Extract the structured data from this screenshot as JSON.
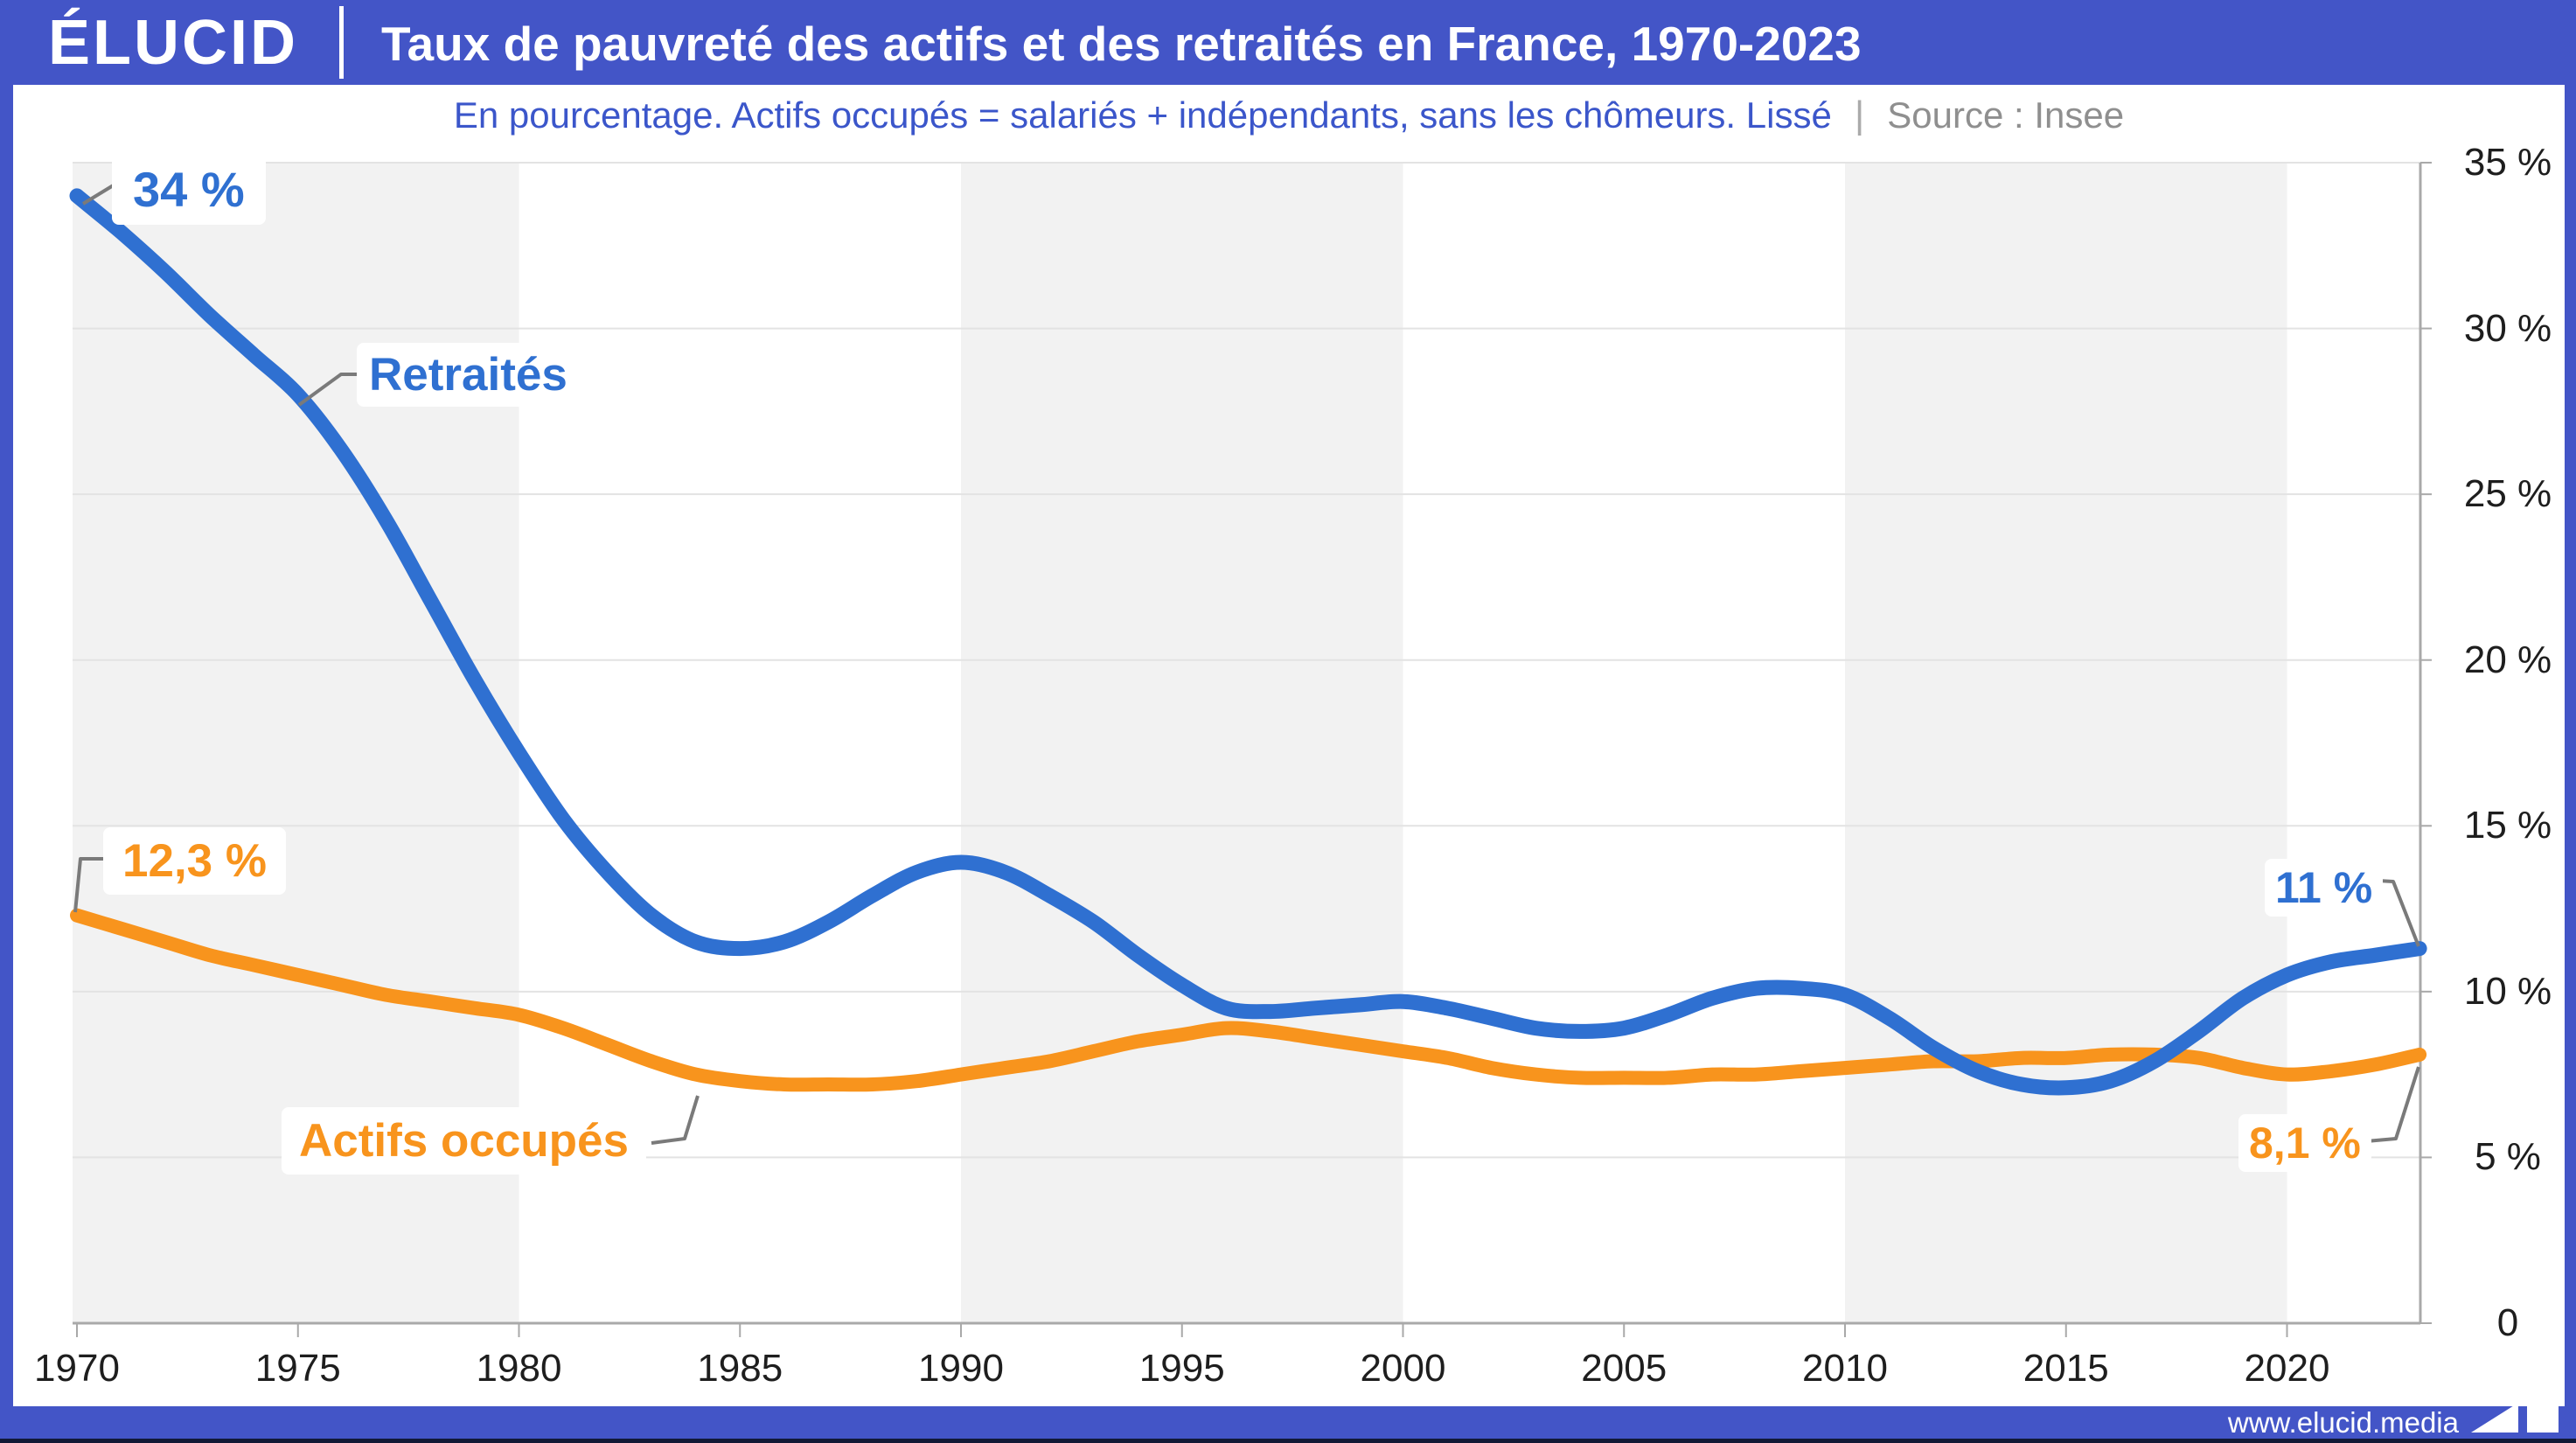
{
  "page": {
    "brand": "ÉLUCID",
    "title": "Taux de pauvreté des actifs et des retraités en France, 1970-2023",
    "subtitle": "En pourcentage. Actifs occupés = salariés + indépendants, sans les chômeurs. Lissé",
    "subtitle_separator": "|",
    "source": "Source : Insee",
    "footer_url": "www.elucid.media",
    "colors": {
      "frame_blue": "#4355c7",
      "retraites_blue": "#2f70d1",
      "actifs_orange": "#f8941d",
      "subtitle_blue": "#3b56ca",
      "source_gray": "#8f8f8f",
      "grid_gray": "#e3e3e3",
      "band_gray": "#f2f2f2",
      "axis_gray": "#a9a9a9"
    }
  },
  "chart_data": {
    "type": "line",
    "title": "Taux de pauvreté des actifs et des retraités en France, 1970-2023",
    "subtitle": "En pourcentage. Actifs occupés = salariés + indépendants, sans les chômeurs. Lissé",
    "source": "Source : Insee",
    "x": [
      1970,
      1971,
      1972,
      1973,
      1974,
      1975,
      1976,
      1977,
      1978,
      1979,
      1980,
      1981,
      1982,
      1983,
      1984,
      1985,
      1986,
      1987,
      1988,
      1989,
      1990,
      1991,
      1992,
      1993,
      1994,
      1995,
      1996,
      1997,
      1998,
      1999,
      2000,
      2001,
      2002,
      2003,
      2004,
      2005,
      2006,
      2007,
      2008,
      2009,
      2010,
      2011,
      2012,
      2013,
      2014,
      2015,
      2016,
      2017,
      2018,
      2019,
      2020,
      2021,
      2022,
      2023
    ],
    "series": [
      {
        "name": "Retraités",
        "color": "#2f70d1",
        "values": [
          34.0,
          32.9,
          31.7,
          30.4,
          29.2,
          28.0,
          26.3,
          24.2,
          21.8,
          19.4,
          17.2,
          15.2,
          13.6,
          12.3,
          11.5,
          11.3,
          11.5,
          12.1,
          12.9,
          13.6,
          13.9,
          13.6,
          12.9,
          12.1,
          11.1,
          10.2,
          9.5,
          9.4,
          9.5,
          9.6,
          9.7,
          9.5,
          9.2,
          8.9,
          8.8,
          8.9,
          9.3,
          9.8,
          10.1,
          10.1,
          9.9,
          9.2,
          8.3,
          7.6,
          7.2,
          7.1,
          7.3,
          7.9,
          8.8,
          9.8,
          10.5,
          10.9,
          11.1,
          11.3
        ]
      },
      {
        "name": "Actifs occupés",
        "color": "#f8941d",
        "values": [
          12.3,
          11.9,
          11.5,
          11.1,
          10.8,
          10.5,
          10.2,
          9.9,
          9.7,
          9.5,
          9.3,
          8.9,
          8.4,
          7.9,
          7.5,
          7.3,
          7.2,
          7.2,
          7.2,
          7.3,
          7.5,
          7.7,
          7.9,
          8.2,
          8.5,
          8.7,
          8.9,
          8.8,
          8.6,
          8.4,
          8.2,
          8.0,
          7.7,
          7.5,
          7.4,
          7.4,
          7.4,
          7.5,
          7.5,
          7.6,
          7.7,
          7.8,
          7.9,
          7.9,
          8.0,
          8.0,
          8.1,
          8.1,
          8.0,
          7.7,
          7.5,
          7.6,
          7.8,
          8.1
        ]
      }
    ],
    "annotations": {
      "start_retraites": "34 %",
      "start_actifs": "12,3 %",
      "end_retraites": "11 %",
      "end_actifs": "8,1 %",
      "label_retraites": "Retraités",
      "label_actifs": "Actifs occupés"
    },
    "ylim": [
      0,
      35
    ],
    "yticks": [
      0,
      5,
      10,
      15,
      20,
      25,
      30,
      35
    ],
    "ytick_labels": [
      "0",
      "5 %",
      "10 %",
      "15 %",
      "20 %",
      "25 %",
      "30 %",
      "35 %"
    ],
    "xticks": [
      1970,
      1975,
      1980,
      1985,
      1990,
      1995,
      2000,
      2005,
      2010,
      2015,
      2020
    ],
    "shaded_decades": [
      [
        1970,
        1980
      ],
      [
        1990,
        2000
      ],
      [
        2010,
        2020
      ]
    ],
    "grid": "horizontal",
    "legend_position": "inline-labels",
    "y_axis_side": "right"
  }
}
